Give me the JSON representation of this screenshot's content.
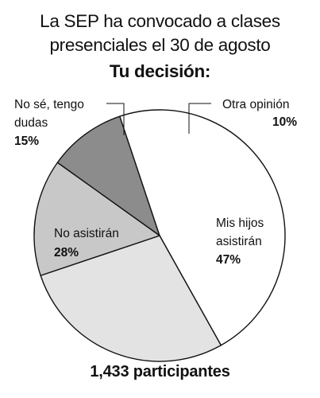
{
  "header": {
    "line1": "La SEP ha convocado a clases",
    "line2": "presenciales el 30 de agosto",
    "line3": "Tu decisión:"
  },
  "chart_data": {
    "type": "pie",
    "slices": [
      {
        "label_lines": [
          "Otra opinión"
        ],
        "value": 10,
        "value_label": "10%",
        "color": "#8c8c8c"
      },
      {
        "label_lines": [
          "Mis hijos",
          "asistirán"
        ],
        "value": 47,
        "value_label": "47%",
        "color": "#ffffff"
      },
      {
        "label_lines": [
          "No asistirán"
        ],
        "value": 28,
        "value_label": "28%",
        "color": "#e3e3e3"
      },
      {
        "label_lines": [
          "No sé, tengo",
          "dudas"
        ],
        "value": 15,
        "value_label": "15%",
        "color": "#c8c8c8"
      }
    ]
  },
  "footer": {
    "participants": "1,433 participantes"
  }
}
